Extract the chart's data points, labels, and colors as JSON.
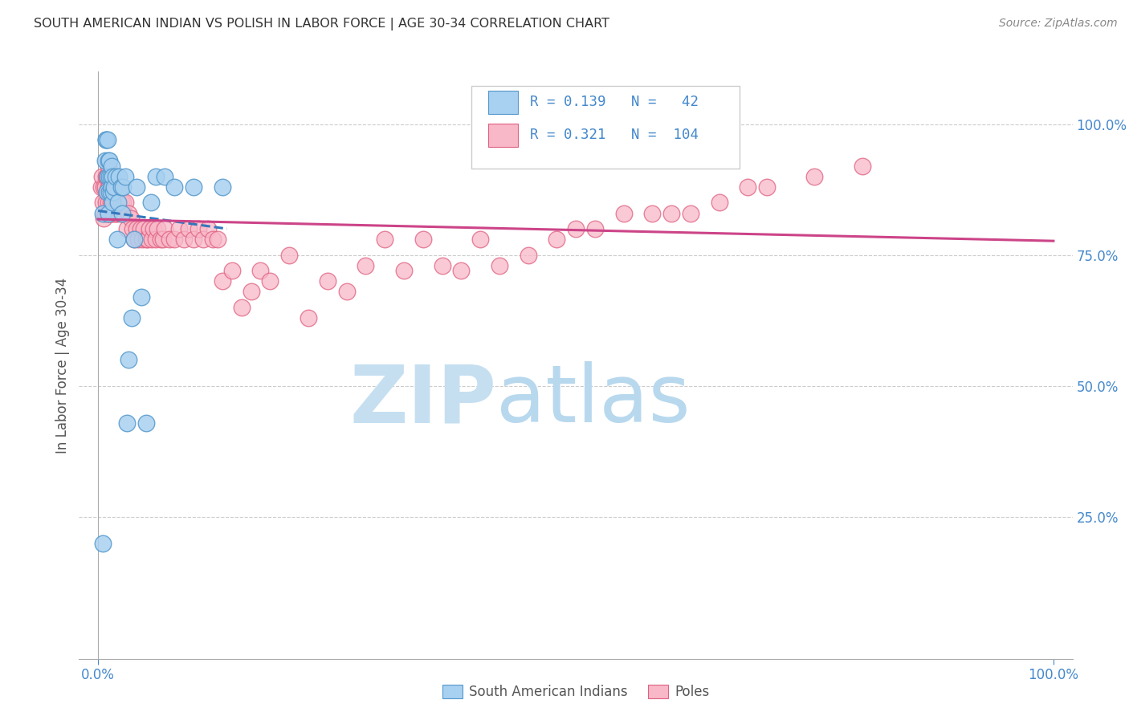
{
  "title": "SOUTH AMERICAN INDIAN VS POLISH IN LABOR FORCE | AGE 30-34 CORRELATION CHART",
  "source": "Source: ZipAtlas.com",
  "ylabel": "In Labor Force | Age 30-34",
  "r_blue": 0.139,
  "n_blue": 42,
  "r_pink": 0.321,
  "n_pink": 104,
  "blue_fill": "#a8d0f0",
  "blue_edge": "#5599cc",
  "pink_fill": "#f8b8c8",
  "pink_edge": "#e06080",
  "blue_line_color": "#3377bb",
  "pink_line_color": "#cc4488",
  "axis_color": "#4488cc",
  "legend_label_blue": "South American Indians",
  "legend_label_pink": "Poles",
  "blue_scatter_x": [
    0.005,
    0.005,
    0.007,
    0.008,
    0.008,
    0.009,
    0.01,
    0.01,
    0.011,
    0.011,
    0.012,
    0.012,
    0.012,
    0.013,
    0.013,
    0.014,
    0.014,
    0.015,
    0.015,
    0.016,
    0.017,
    0.018,
    0.02,
    0.021,
    0.022,
    0.024,
    0.025,
    0.026,
    0.028,
    0.03,
    0.032,
    0.035,
    0.038,
    0.04,
    0.045,
    0.05,
    0.055,
    0.06,
    0.07,
    0.08,
    0.1,
    0.13
  ],
  "blue_scatter_y": [
    0.2,
    0.83,
    0.93,
    0.97,
    0.97,
    0.87,
    0.9,
    0.97,
    0.83,
    0.93,
    0.87,
    0.9,
    0.93,
    0.87,
    0.9,
    0.88,
    0.92,
    0.85,
    0.9,
    0.87,
    0.88,
    0.9,
    0.78,
    0.85,
    0.9,
    0.88,
    0.83,
    0.88,
    0.9,
    0.43,
    0.55,
    0.63,
    0.78,
    0.88,
    0.67,
    0.43,
    0.85,
    0.9,
    0.9,
    0.88,
    0.88,
    0.88
  ],
  "pink_scatter_x": [
    0.003,
    0.004,
    0.005,
    0.006,
    0.006,
    0.007,
    0.007,
    0.008,
    0.008,
    0.009,
    0.009,
    0.01,
    0.01,
    0.01,
    0.011,
    0.011,
    0.011,
    0.012,
    0.012,
    0.013,
    0.013,
    0.014,
    0.014,
    0.015,
    0.015,
    0.016,
    0.016,
    0.017,
    0.017,
    0.018,
    0.018,
    0.019,
    0.02,
    0.02,
    0.021,
    0.022,
    0.023,
    0.024,
    0.025,
    0.026,
    0.027,
    0.028,
    0.03,
    0.032,
    0.034,
    0.036,
    0.038,
    0.04,
    0.042,
    0.044,
    0.046,
    0.048,
    0.05,
    0.052,
    0.054,
    0.056,
    0.058,
    0.06,
    0.062,
    0.065,
    0.068,
    0.07,
    0.075,
    0.08,
    0.085,
    0.09,
    0.095,
    0.1,
    0.105,
    0.11,
    0.115,
    0.12,
    0.125,
    0.13,
    0.14,
    0.15,
    0.16,
    0.17,
    0.18,
    0.2,
    0.22,
    0.24,
    0.26,
    0.28,
    0.3,
    0.32,
    0.34,
    0.36,
    0.38,
    0.4,
    0.42,
    0.45,
    0.48,
    0.5,
    0.52,
    0.55,
    0.58,
    0.6,
    0.62,
    0.65,
    0.68,
    0.7,
    0.75,
    0.8
  ],
  "pink_scatter_y": [
    0.88,
    0.9,
    0.85,
    0.82,
    0.88,
    0.83,
    0.88,
    0.85,
    0.9,
    0.87,
    0.9,
    0.83,
    0.87,
    0.9,
    0.85,
    0.88,
    0.92,
    0.83,
    0.88,
    0.85,
    0.9,
    0.83,
    0.88,
    0.85,
    0.9,
    0.83,
    0.87,
    0.85,
    0.88,
    0.83,
    0.87,
    0.85,
    0.83,
    0.88,
    0.85,
    0.87,
    0.83,
    0.85,
    0.83,
    0.85,
    0.83,
    0.85,
    0.8,
    0.83,
    0.82,
    0.8,
    0.78,
    0.8,
    0.78,
    0.8,
    0.78,
    0.8,
    0.78,
    0.78,
    0.8,
    0.78,
    0.8,
    0.78,
    0.8,
    0.78,
    0.78,
    0.8,
    0.78,
    0.78,
    0.8,
    0.78,
    0.8,
    0.78,
    0.8,
    0.78,
    0.8,
    0.78,
    0.78,
    0.7,
    0.72,
    0.65,
    0.68,
    0.72,
    0.7,
    0.75,
    0.63,
    0.7,
    0.68,
    0.73,
    0.78,
    0.72,
    0.78,
    0.73,
    0.72,
    0.78,
    0.73,
    0.75,
    0.78,
    0.8,
    0.8,
    0.83,
    0.83,
    0.83,
    0.83,
    0.85,
    0.88,
    0.88,
    0.9,
    0.92
  ],
  "xlim": [
    0.0,
    1.0
  ],
  "ylim": [
    0.0,
    1.1
  ],
  "ytick_positions": [
    0.25,
    0.5,
    0.75,
    1.0
  ],
  "ytick_labels": [
    "25.0%",
    "50.0%",
    "75.0%",
    "100.0%"
  ],
  "xtick_positions": [
    0.0,
    1.0
  ],
  "xtick_labels": [
    "0.0%",
    "100.0%"
  ]
}
